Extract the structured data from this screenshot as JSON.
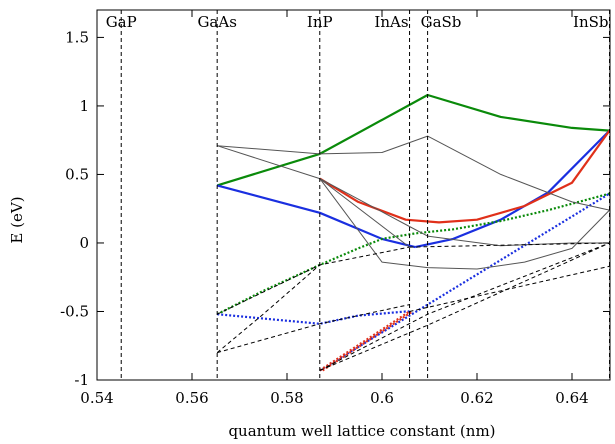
{
  "chart_data": {
    "type": "line",
    "title": "",
    "xlabel": "quantum well lattice constant (nm)",
    "ylabel": "E (eV)",
    "xlim": [
      0.54,
      0.648
    ],
    "ylim": [
      -1,
      1.7
    ],
    "xticks": [
      0.54,
      0.56,
      0.58,
      0.6,
      0.62,
      0.64
    ],
    "xtick_labels": [
      "0.54",
      "0.56",
      "0.58",
      "0.6",
      "0.62",
      "0.64"
    ],
    "yticks": [
      -1,
      -0.5,
      0,
      0.5,
      1,
      1.5
    ],
    "ytick_labels": [
      "-1",
      "-0.5",
      "0",
      "0.5",
      "1",
      "1.5"
    ],
    "grid": false,
    "legend": "none",
    "materials": [
      {
        "name": "GaP",
        "x": 0.5451
      },
      {
        "name": "GaAs",
        "x": 0.5653
      },
      {
        "name": "InP",
        "x": 0.5869
      },
      {
        "name": "InAs",
        "x": 0.6058
      },
      {
        "name": "GaSb",
        "x": 0.6096
      },
      {
        "name": "InSb",
        "x": 0.6479
      }
    ],
    "series": [
      {
        "color": "#0a8a0a",
        "style": "solid",
        "width": 2.2,
        "points": [
          [
            0.5653,
            0.42
          ],
          [
            0.5869,
            0.65
          ],
          [
            0.6096,
            1.08
          ],
          [
            0.625,
            0.92
          ],
          [
            0.64,
            0.84
          ],
          [
            0.6479,
            0.82
          ]
        ]
      },
      {
        "color": "#1a2fe0",
        "style": "solid",
        "width": 2.2,
        "points": [
          [
            0.5653,
            0.42
          ],
          [
            0.5869,
            0.22
          ],
          [
            0.6,
            0.03
          ],
          [
            0.607,
            -0.03
          ]
        ]
      },
      {
        "color": "#1a2fe0",
        "style": "solid",
        "width": 2.2,
        "points": [
          [
            0.607,
            -0.03
          ],
          [
            0.615,
            0.03
          ],
          [
            0.625,
            0.17
          ],
          [
            0.635,
            0.37
          ],
          [
            0.6479,
            0.82
          ]
        ]
      },
      {
        "color": "#e0301a",
        "style": "solid",
        "width": 2.2,
        "points": [
          [
            0.5869,
            0.47
          ],
          [
            0.595,
            0.3
          ],
          [
            0.605,
            0.17
          ],
          [
            0.612,
            0.15
          ],
          [
            0.62,
            0.17
          ],
          [
            0.63,
            0.27
          ],
          [
            0.64,
            0.44
          ],
          [
            0.6479,
            0.82
          ]
        ]
      },
      {
        "color": "#0a8a0a",
        "style": "dotted",
        "width": 2.2,
        "points": [
          [
            0.5653,
            -0.52
          ],
          [
            0.575,
            -0.35
          ],
          [
            0.5869,
            -0.16
          ],
          [
            0.595,
            -0.04
          ],
          [
            0.6,
            0.03
          ],
          [
            0.607,
            0.07
          ],
          [
            0.615,
            0.1
          ],
          [
            0.625,
            0.16
          ],
          [
            0.635,
            0.24
          ],
          [
            0.6479,
            0.36
          ]
        ]
      },
      {
        "color": "#1a2fe0",
        "style": "dotted",
        "width": 2.2,
        "points": [
          [
            0.5653,
            -0.52
          ],
          [
            0.5869,
            -0.59
          ],
          [
            0.595,
            -0.53
          ],
          [
            0.605,
            -0.5
          ],
          [
            0.6058,
            -0.5
          ]
        ]
      },
      {
        "color": "#1a2fe0",
        "style": "dotted",
        "width": 2.2,
        "points": [
          [
            0.5869,
            -0.93
          ],
          [
            0.6479,
            0.36
          ]
        ]
      },
      {
        "color": "#e0301a",
        "style": "dotted",
        "width": 2.2,
        "points": [
          [
            0.5869,
            -0.93
          ],
          [
            0.6058,
            -0.5
          ]
        ]
      },
      {
        "color": "#e0301a",
        "style": "dotted",
        "width": 2.2,
        "points": [
          [
            0.5875,
            -0.93
          ],
          [
            0.6064,
            -0.5
          ]
        ]
      },
      {
        "color": "#555555",
        "style": "solid",
        "width": 1,
        "points": [
          [
            0.5653,
            0.71
          ],
          [
            0.5869,
            0.65
          ],
          [
            0.6,
            0.66
          ],
          [
            0.6096,
            0.78
          ],
          [
            0.625,
            0.5
          ],
          [
            0.64,
            0.3
          ],
          [
            0.6479,
            0.24
          ]
        ]
      },
      {
        "color": "#555555",
        "style": "solid",
        "width": 1,
        "points": [
          [
            0.5653,
            0.71
          ],
          [
            0.5869,
            0.47
          ],
          [
            0.6058,
            -0.03
          ]
        ]
      },
      {
        "color": "#555555",
        "style": "solid",
        "width": 1,
        "points": [
          [
            0.5869,
            0.47
          ],
          [
            0.6,
            -0.14
          ],
          [
            0.6096,
            -0.18
          ],
          [
            0.62,
            -0.19
          ],
          [
            0.63,
            -0.14
          ],
          [
            0.64,
            -0.04
          ],
          [
            0.6479,
            0.24
          ]
        ]
      },
      {
        "color": "#555555",
        "style": "solid",
        "width": 1,
        "points": [
          [
            0.5869,
            0.47
          ],
          [
            0.6058,
            0.12
          ],
          [
            0.6096,
            0.05
          ]
        ]
      },
      {
        "color": "#555555",
        "style": "solid",
        "width": 1,
        "points": [
          [
            0.6096,
            0.05
          ],
          [
            0.625,
            -0.02
          ],
          [
            0.64,
            0.0
          ],
          [
            0.6479,
            0.0
          ]
        ]
      },
      {
        "color": "#000000",
        "style": "dashed",
        "width": 1,
        "points": [
          [
            0.5653,
            -0.52
          ],
          [
            0.5869,
            -0.16
          ],
          [
            0.6058,
            -0.03
          ]
        ]
      },
      {
        "color": "#000000",
        "style": "dashed",
        "width": 1,
        "points": [
          [
            0.6058,
            -0.03
          ],
          [
            0.62,
            -0.02
          ],
          [
            0.6479,
            0.0
          ]
        ]
      },
      {
        "color": "#000000",
        "style": "dashed",
        "width": 1,
        "points": [
          [
            0.5653,
            -0.8
          ],
          [
            0.5869,
            -0.59
          ],
          [
            0.6058,
            -0.45
          ]
        ]
      },
      {
        "color": "#000000",
        "style": "dashed",
        "width": 1,
        "points": [
          [
            0.5653,
            -0.8
          ],
          [
            0.575,
            -0.52
          ],
          [
            0.5869,
            -0.16
          ]
        ]
      },
      {
        "color": "#000000",
        "style": "dashed",
        "width": 1,
        "points": [
          [
            0.5869,
            -0.93
          ],
          [
            0.6096,
            -0.6
          ],
          [
            0.6479,
            0.0
          ]
        ]
      },
      {
        "color": "#000000",
        "style": "dashed",
        "width": 1,
        "points": [
          [
            0.5869,
            -0.93
          ],
          [
            0.6096,
            -0.52
          ],
          [
            0.6479,
            0.0
          ]
        ]
      },
      {
        "color": "#000000",
        "style": "dashed",
        "width": 1,
        "points": [
          [
            0.6058,
            -0.5
          ],
          [
            0.6479,
            -0.17
          ]
        ]
      }
    ]
  }
}
